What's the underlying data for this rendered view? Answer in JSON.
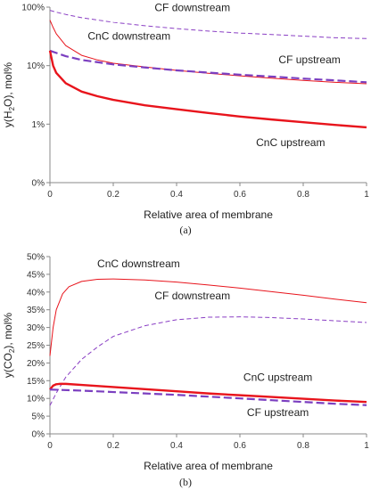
{
  "chart_data": [
    {
      "panel": "(a)",
      "type": "line",
      "xlabel": "Relative area of membrane",
      "ylabel": "y(H₂O), mol%",
      "ylabel_main": "y(H",
      "ylabel_sub": "2",
      "ylabel_end": "O), mol%",
      "yscale": "log",
      "xlim": [
        0,
        1
      ],
      "ylim": [
        0.1,
        100
      ],
      "xticks": [
        0,
        0.2,
        0.4,
        0.6,
        0.8,
        1
      ],
      "xtick_labels": [
        "0",
        "0.2",
        "0.4",
        "0.6",
        "0.8",
        "1"
      ],
      "yticks": [
        0.1,
        1,
        10,
        100
      ],
      "ytick_labels": [
        "0%",
        "1%",
        "10%",
        "100%"
      ],
      "series": [
        {
          "name": "CF downstream",
          "color": "#8a3fc4",
          "style": "dashed",
          "width": 1,
          "x": [
            0,
            0.02,
            0.05,
            0.1,
            0.2,
            0.3,
            0.4,
            0.5,
            0.6,
            0.7,
            0.8,
            0.9,
            1.0
          ],
          "y": [
            88,
            82,
            75,
            66,
            55,
            48,
            43,
            39,
            36,
            34,
            32,
            30,
            29
          ]
        },
        {
          "name": "CnC downstream",
          "color": "#e8141c",
          "style": "solid",
          "width": 1,
          "x": [
            0,
            0.01,
            0.02,
            0.05,
            0.1,
            0.15,
            0.2,
            0.3,
            0.4,
            0.5,
            0.6,
            0.7,
            0.8,
            0.9,
            1.0
          ],
          "y": [
            60,
            45,
            35,
            22,
            15,
            12.5,
            11,
            9.5,
            8.3,
            7.4,
            6.7,
            6.1,
            5.6,
            5.2,
            4.9
          ]
        },
        {
          "name": "CF upstream",
          "color": "#7b3fc0",
          "style": "dashed",
          "width": 2.2,
          "x": [
            0,
            0.05,
            0.1,
            0.2,
            0.3,
            0.4,
            0.5,
            0.6,
            0.7,
            0.8,
            0.9,
            1.0
          ],
          "y": [
            18,
            14.5,
            12.5,
            10.5,
            9.3,
            8.3,
            7.6,
            7.0,
            6.5,
            6.0,
            5.6,
            5.2
          ]
        },
        {
          "name": "CnC upstream",
          "color": "#e8141c",
          "style": "solid",
          "width": 2.4,
          "x": [
            0,
            0.01,
            0.02,
            0.05,
            0.1,
            0.15,
            0.2,
            0.3,
            0.4,
            0.5,
            0.6,
            0.7,
            0.8,
            0.9,
            1.0
          ],
          "y": [
            18,
            10,
            7.5,
            5,
            3.6,
            3.0,
            2.6,
            2.1,
            1.8,
            1.55,
            1.35,
            1.2,
            1.08,
            0.97,
            0.88
          ]
        }
      ],
      "annotations": [
        {
          "text": "CF downstream",
          "x": 0.45,
          "y": 85
        },
        {
          "text": "CnC downstream",
          "x": 0.25,
          "y": 28
        },
        {
          "text": "CF upstream",
          "x": 0.82,
          "y": 11
        },
        {
          "text": "CnC upstream",
          "x": 0.76,
          "y": 0.42
        }
      ]
    },
    {
      "panel": "(b)",
      "type": "line",
      "xlabel": "Relative area of membrane",
      "ylabel": "y(CO₂), mol%",
      "ylabel_main": "y(CO",
      "ylabel_sub": "2",
      "ylabel_end": "), mol%",
      "xlim": [
        0,
        1
      ],
      "ylim": [
        0,
        50
      ],
      "xticks": [
        0,
        0.2,
        0.4,
        0.6,
        0.8,
        1
      ],
      "xtick_labels": [
        "0",
        "0.2",
        "0.4",
        "0.6",
        "0.8",
        "1"
      ],
      "yticks": [
        0,
        5,
        10,
        15,
        20,
        25,
        30,
        35,
        40,
        45,
        50
      ],
      "ytick_labels": [
        "0%",
        "5%",
        "10%",
        "15%",
        "20%",
        "25%",
        "30%",
        "35%",
        "40%",
        "45%",
        "50%"
      ],
      "series": [
        {
          "name": "CnC downstream",
          "color": "#e8141c",
          "style": "solid",
          "width": 1,
          "x": [
            0,
            0.01,
            0.02,
            0.04,
            0.06,
            0.1,
            0.15,
            0.2,
            0.3,
            0.4,
            0.5,
            0.6,
            0.7,
            0.8,
            0.9,
            1.0
          ],
          "y": [
            22,
            30,
            35,
            39.5,
            41.5,
            43,
            43.6,
            43.7,
            43.4,
            42.8,
            42,
            41.1,
            40.1,
            39.1,
            38,
            37
          ]
        },
        {
          "name": "CF downstream",
          "color": "#8a3fc4",
          "style": "dashed",
          "width": 1,
          "x": [
            0,
            0.02,
            0.05,
            0.1,
            0.15,
            0.2,
            0.3,
            0.4,
            0.5,
            0.6,
            0.7,
            0.8,
            0.9,
            1.0
          ],
          "y": [
            8,
            11.5,
            16,
            21,
            24.5,
            27.5,
            30.5,
            32.2,
            32.9,
            33,
            32.8,
            32.4,
            31.9,
            31.4
          ]
        },
        {
          "name": "CnC upstream",
          "color": "#e8141c",
          "style": "solid",
          "width": 2.4,
          "x": [
            0,
            0.01,
            0.02,
            0.03,
            0.05,
            0.1,
            0.2,
            0.3,
            0.4,
            0.5,
            0.6,
            0.7,
            0.8,
            0.9,
            1.0
          ],
          "y": [
            12.5,
            13.6,
            14,
            14.1,
            14.1,
            13.8,
            13.2,
            12.6,
            12.0,
            11.4,
            10.9,
            10.4,
            9.9,
            9.4,
            9.0
          ]
        },
        {
          "name": "CF upstream",
          "color": "#7b3fc0",
          "style": "dashed",
          "width": 2.2,
          "x": [
            0,
            0.1,
            0.2,
            0.3,
            0.4,
            0.5,
            0.6,
            0.7,
            0.8,
            0.9,
            1.0
          ],
          "y": [
            12.5,
            12.2,
            11.8,
            11.4,
            11.0,
            10.5,
            10.0,
            9.5,
            9.0,
            8.5,
            8.1
          ]
        }
      ],
      "annotations": [
        {
          "text": "CnC downstream",
          "x": 0.28,
          "y": 47
        },
        {
          "text": "CF downstream",
          "x": 0.45,
          "y": 38
        },
        {
          "text": "CnC upstream",
          "x": 0.72,
          "y": 15
        },
        {
          "text": "CF upstream",
          "x": 0.72,
          "y": 5
        }
      ]
    }
  ]
}
